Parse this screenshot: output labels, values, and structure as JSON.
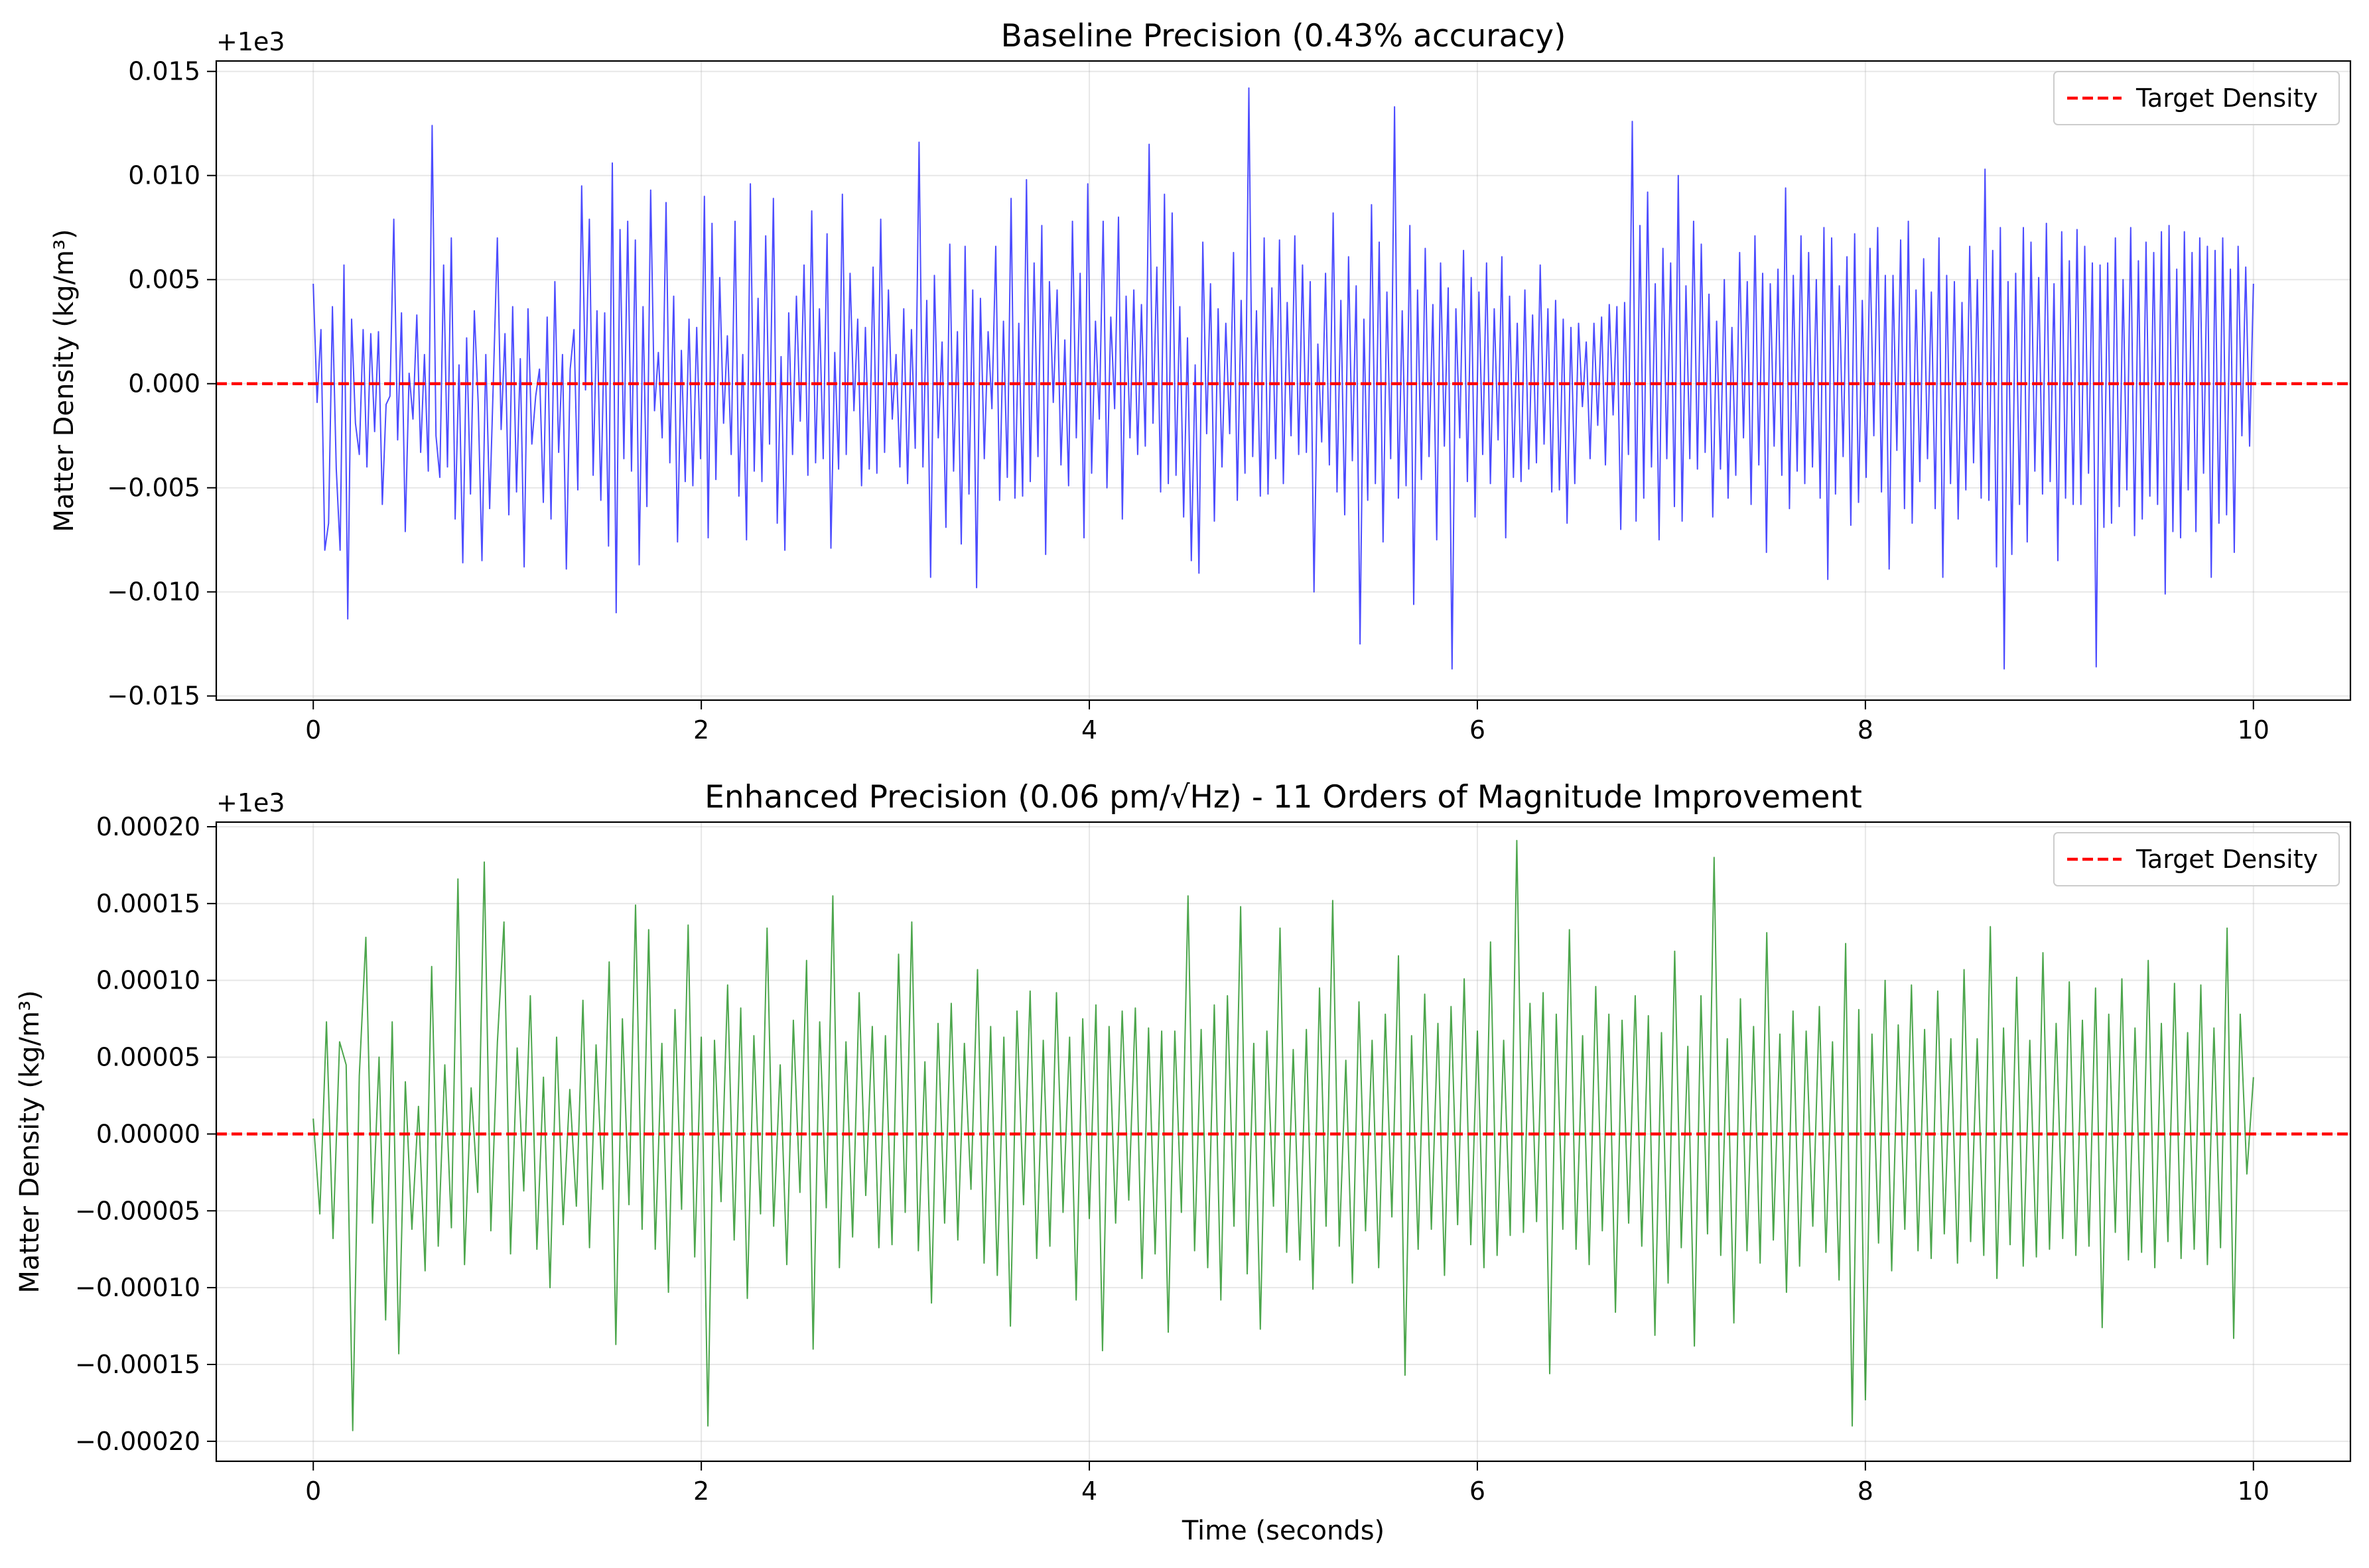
{
  "chart_data": [
    {
      "type": "line",
      "title": "Baseline Precision (0.43% accuracy)",
      "xlabel": "",
      "ylabel": "Matter Density (kg/m³)",
      "offset_label": "+1e3",
      "y_offset": 1000,
      "xlim": [
        -0.5,
        10.5
      ],
      "ylim": [
        -0.0152,
        0.0155
      ],
      "xticks": [
        0,
        2,
        4,
        6,
        8,
        10
      ],
      "xtick_labels": [
        "0",
        "2",
        "4",
        "6",
        "8",
        "10"
      ],
      "yticks": [
        -0.015,
        -0.01,
        -0.005,
        0.0,
        0.005,
        0.01,
        0.015
      ],
      "ytick_labels": [
        "−0.015",
        "−0.010",
        "−0.005",
        "0.000",
        "0.005",
        "0.010",
        "0.015"
      ],
      "grid": true,
      "legend": {
        "placement": "upper right",
        "entries": [
          {
            "label": "Target Density",
            "color": "#ff0000",
            "style": "dashed"
          }
        ]
      },
      "reference_line": {
        "y": 0.0,
        "name": "Target Density",
        "color": "#ff0000"
      },
      "series": [
        {
          "color": "#0000ff",
          "x_start": 0,
          "x_end": 10,
          "values": [
            0.0048,
            -0.0009,
            0.0026,
            -0.008,
            -0.0067,
            0.0037,
            -0.0041,
            -0.008,
            0.0057,
            -0.0113,
            0.0031,
            -0.0019,
            -0.0034,
            0.0026,
            -0.004,
            0.0024,
            -0.0023,
            0.0025,
            -0.0058,
            -0.001,
            -0.0006,
            0.0079,
            -0.0027,
            0.0034,
            -0.0071,
            0.0005,
            -0.0017,
            0.0033,
            -0.0033,
            0.0014,
            -0.0042,
            0.0124,
            -0.0025,
            -0.0045,
            0.0057,
            -0.004,
            0.007,
            -0.0065,
            0.0009,
            -0.0086,
            0.0022,
            -0.0053,
            0.0035,
            -0.0009,
            -0.0085,
            0.0014,
            -0.006,
            0.0004,
            0.007,
            -0.0022,
            0.0024,
            -0.0063,
            0.0037,
            -0.0052,
            0.0012,
            -0.0088,
            0.0036,
            -0.0029,
            -0.0006,
            0.0007,
            -0.0057,
            0.0032,
            -0.0065,
            0.0049,
            -0.0033,
            0.0014,
            -0.0089,
            0.0007,
            0.0026,
            -0.0051,
            0.0095,
            -0.0003,
            0.0079,
            -0.0044,
            0.0035,
            -0.0056,
            0.0034,
            -0.0078,
            0.0106,
            -0.011,
            0.0074,
            -0.0036,
            0.0078,
            -0.0042,
            0.0069,
            -0.0087,
            0.0037,
            -0.0059,
            0.0093,
            -0.0013,
            0.0015,
            -0.0026,
            0.0087,
            -0.0038,
            0.0042,
            -0.0076,
            0.0016,
            -0.0047,
            0.0031,
            -0.0049,
            0.0027,
            -0.0036,
            0.009,
            -0.0074,
            0.0077,
            -0.0046,
            0.0051,
            -0.0019,
            0.0023,
            -0.0034,
            0.0078,
            -0.0054,
            0.0014,
            -0.0075,
            0.0096,
            -0.0042,
            0.0041,
            -0.0047,
            0.0071,
            -0.0029,
            0.0089,
            -0.0067,
            0.0013,
            -0.008,
            0.0034,
            -0.0034,
            0.0042,
            -0.0018,
            0.0057,
            -0.0044,
            0.0083,
            -0.0038,
            0.0036,
            -0.0036,
            0.0072,
            -0.0079,
            0.0015,
            -0.0041,
            0.0091,
            -0.0034,
            0.0053,
            -0.0013,
            0.0031,
            -0.0049,
            0.0027,
            -0.0041,
            0.0056,
            -0.0043,
            0.0079,
            -0.0033,
            0.0045,
            -0.0017,
            0.0014,
            -0.004,
            0.0036,
            -0.0048,
            0.0026,
            -0.0031,
            0.0116,
            -0.004,
            0.004,
            -0.0093,
            0.0052,
            -0.0026,
            0.002,
            -0.0069,
            0.0067,
            -0.0042,
            0.0025,
            -0.0077,
            0.0066,
            -0.0053,
            0.0045,
            -0.0098,
            0.0041,
            -0.0036,
            0.0025,
            -0.0012,
            0.0066,
            -0.0056,
            0.003,
            -0.0045,
            0.0089,
            -0.0055,
            0.0029,
            -0.0054,
            0.0098,
            -0.0047,
            0.0058,
            -0.0035,
            0.0076,
            -0.0082,
            0.0049,
            -0.0009,
            0.0045,
            -0.0039,
            0.0021,
            -0.0049,
            0.0078,
            -0.0026,
            0.0053,
            -0.0074,
            0.0096,
            -0.0043,
            0.003,
            -0.0017,
            0.0078,
            -0.005,
            0.0032,
            -0.0012,
            0.008,
            -0.0065,
            0.0042,
            -0.0026,
            0.0045,
            -0.0034,
            0.0038,
            -0.003,
            0.0115,
            -0.0019,
            0.0056,
            -0.0052,
            0.0091,
            -0.0048,
            0.0082,
            -0.0044,
            0.0037,
            -0.0064,
            0.0022,
            -0.0085,
            0.0009,
            -0.0091,
            0.0068,
            -0.0024,
            0.0048,
            -0.0066,
            0.0036,
            -0.004,
            0.0029,
            -0.0024,
            0.0063,
            -0.0056,
            0.004,
            -0.0043,
            0.0142,
            -0.0035,
            0.0035,
            -0.0054,
            0.007,
            -0.0053,
            0.0046,
            -0.0036,
            0.0069,
            -0.0048,
            0.0039,
            -0.0025,
            0.0071,
            -0.0034,
            0.0057,
            -0.0033,
            0.0049,
            -0.01,
            0.0019,
            -0.0028,
            0.0053,
            -0.0039,
            0.0082,
            -0.0052,
            0.004,
            -0.0063,
            0.0061,
            -0.0037,
            0.0047,
            -0.0125,
            0.0031,
            -0.0056,
            0.0086,
            -0.0048,
            0.0068,
            -0.0076,
            0.0044,
            -0.0036,
            0.0133,
            -0.0055,
            0.0035,
            -0.0049,
            0.0076,
            -0.0106,
            0.0045,
            -0.0046,
            0.0065,
            -0.0035,
            0.0038,
            -0.0075,
            0.0058,
            -0.003,
            0.0046,
            -0.0137,
            0.0036,
            -0.0026,
            0.0064,
            -0.0047,
            0.0051,
            -0.0064,
            0.0044,
            -0.0034,
            0.0058,
            -0.0048,
            0.0036,
            -0.0027,
            0.0061,
            -0.0074,
            0.0042,
            -0.0045,
            0.0029,
            -0.0047,
            0.0045,
            -0.0041,
            0.0033,
            -0.0038,
            0.0057,
            -0.0029,
            0.0036,
            -0.0052,
            0.004,
            -0.0051,
            0.0031,
            -0.0067,
            0.0027,
            -0.0048,
            0.0029,
            -0.0011,
            0.002,
            -0.0036,
            0.0029,
            -0.002,
            0.0032,
            -0.0039,
            0.0038,
            -0.0015,
            0.0037,
            -0.007,
            0.0039,
            -0.0034,
            0.0126,
            -0.0066,
            0.0076,
            -0.0055,
            0.0092,
            -0.004,
            0.0048,
            -0.0075,
            0.0065,
            -0.0036,
            0.0058,
            -0.0059,
            0.01,
            -0.0066,
            0.0047,
            -0.0036,
            0.0078,
            -0.0041,
            0.0067,
            -0.0033,
            0.0043,
            -0.0064,
            0.003,
            -0.0041,
            0.005,
            -0.0055,
            0.0027,
            -0.0044,
            0.0063,
            -0.0026,
            0.0049,
            -0.0058,
            0.0071,
            -0.0039,
            0.0053,
            -0.0081,
            0.0048,
            -0.003,
            0.0055,
            -0.0044,
            0.0094,
            -0.006,
            0.0052,
            -0.0042,
            0.0071,
            -0.0048,
            0.0063,
            -0.004,
            0.005,
            -0.0055,
            0.0075,
            -0.0094,
            0.007,
            -0.0053,
            0.0047,
            -0.0035,
            0.0061,
            -0.0068,
            0.0072,
            -0.0057,
            0.004,
            -0.0045,
            0.0065,
            -0.0025,
            0.0075,
            -0.0052,
            0.0052,
            -0.0089,
            0.0052,
            -0.0032,
            0.0069,
            -0.006,
            0.0078,
            -0.0067,
            0.0045,
            -0.0047,
            0.006,
            -0.0036,
            0.0044,
            -0.006,
            0.007,
            -0.0093,
            0.0052,
            -0.0048,
            0.0049,
            -0.0065,
            0.0039,
            -0.0051,
            0.0066,
            -0.0038,
            0.005,
            -0.0055,
            0.0103,
            -0.0056,
            0.0064,
            -0.0088,
            0.0075,
            -0.0137,
            0.0049,
            -0.0082,
            0.0053,
            -0.0058,
            0.0075,
            -0.0076,
            0.0068,
            -0.0042,
            0.0051,
            -0.0053,
            0.0077,
            -0.0047,
            0.0048,
            -0.0085,
            0.0073,
            -0.0055,
            0.0059,
            -0.0058,
            0.0074,
            -0.0058,
            0.0066,
            -0.0043,
            0.0058,
            -0.0136,
            0.0057,
            -0.0069,
            0.0058,
            -0.0067,
            0.007,
            -0.0059,
            0.005,
            -0.0051,
            0.0075,
            -0.0073,
            0.0059,
            -0.0065,
            0.0068,
            -0.0054,
            0.0063,
            -0.0058,
            0.0073,
            -0.0101,
            0.0076,
            -0.0071,
            0.0055,
            -0.0074,
            0.0073,
            -0.0051,
            0.0063,
            -0.0071,
            0.007,
            -0.0043,
            0.0066,
            -0.0093,
            0.0064,
            -0.0067,
            0.007,
            -0.0063,
            0.0055,
            -0.0081,
            0.0066,
            -0.0025,
            0.0056,
            -0.003,
            0.0048
          ]
        }
      ]
    },
    {
      "type": "line",
      "title": "Enhanced Precision (0.06 pm/√Hz) - 11 Orders of Magnitude Improvement",
      "xlabel": "Time (seconds)",
      "ylabel": "Matter Density (kg/m³)",
      "offset_label": "+1e3",
      "y_offset": 1000,
      "xlim": [
        -0.5,
        10.5
      ],
      "ylim": [
        -0.000213,
        0.000203
      ],
      "xticks": [
        0,
        2,
        4,
        6,
        8,
        10
      ],
      "xtick_labels": [
        "0",
        "2",
        "4",
        "6",
        "8",
        "10"
      ],
      "yticks": [
        -0.0002,
        -0.00015,
        -0.0001,
        -5e-05,
        0.0,
        5e-05,
        0.0001,
        0.00015,
        0.0002
      ],
      "ytick_labels": [
        "−0.00020",
        "−0.00015",
        "−0.00010",
        "−0.00005",
        "0.00000",
        "0.00005",
        "0.00010",
        "0.00015",
        "0.00020"
      ],
      "grid": true,
      "legend": {
        "placement": "upper right",
        "entries": [
          {
            "label": "Target Density",
            "color": "#ff0000",
            "style": "dashed"
          }
        ]
      },
      "reference_line": {
        "y": 0.0,
        "name": "Target Density",
        "color": "#ff0000"
      },
      "series": [
        {
          "color": "#008000",
          "x_start": 0,
          "x_end": 10,
          "values": [
            1e-05,
            -5.2e-05,
            7.3e-05,
            -6.8e-05,
            6e-05,
            4.5e-05,
            -0.000193,
            3.8e-05,
            0.000128,
            -5.8e-05,
            5e-05,
            -0.000121,
            7.3e-05,
            -0.000143,
            3.4e-05,
            -6.2e-05,
            1.8e-05,
            -8.9e-05,
            0.000109,
            -7.3e-05,
            4.5e-05,
            -6.1e-05,
            0.000166,
            -8.5e-05,
            3e-05,
            -3.8e-05,
            0.000177,
            -6.3e-05,
            6e-05,
            0.000138,
            -7.8e-05,
            5.6e-05,
            -3.7e-05,
            9e-05,
            -7.5e-05,
            3.7e-05,
            -0.0001,
            6.3e-05,
            -5.9e-05,
            2.9e-05,
            -4.7e-05,
            8.7e-05,
            -7.4e-05,
            5.8e-05,
            -3.6e-05,
            0.000112,
            -0.000137,
            7.5e-05,
            -4.6e-05,
            0.000149,
            -6.2e-05,
            0.000133,
            -7.5e-05,
            5.9e-05,
            -0.000103,
            8.1e-05,
            -4.9e-05,
            0.000136,
            -8e-05,
            6.3e-05,
            -0.00019,
            6.1e-05,
            -4.4e-05,
            9.7e-05,
            -6.9e-05,
            8.2e-05,
            -0.000107,
            6.4e-05,
            -5.2e-05,
            0.000134,
            -6e-05,
            4.5e-05,
            -8.5e-05,
            7.4e-05,
            -3.8e-05,
            0.000113,
            -0.00014,
            7.3e-05,
            -4.8e-05,
            0.000155,
            -8.7e-05,
            6e-05,
            -6.7e-05,
            9.2e-05,
            -4e-05,
            7e-05,
            -7.4e-05,
            6.4e-05,
            -7.2e-05,
            0.000117,
            -5.1e-05,
            0.000138,
            -7.6e-05,
            4.7e-05,
            -0.00011,
            7.2e-05,
            -5.8e-05,
            8.5e-05,
            -6.9e-05,
            5.9e-05,
            -3.6e-05,
            0.000107,
            -8.4e-05,
            7e-05,
            -9.2e-05,
            6.3e-05,
            -0.000125,
            8e-05,
            -4.6e-05,
            9.3e-05,
            -8.1e-05,
            6.1e-05,
            -7.3e-05,
            9.2e-05,
            -5.1e-05,
            6.3e-05,
            -0.000108,
            7.5e-05,
            -5.5e-05,
            8.4e-05,
            -0.000141,
            7e-05,
            -5.8e-05,
            8e-05,
            -4.3e-05,
            8.2e-05,
            -9.4e-05,
            6.9e-05,
            -7.8e-05,
            6.7e-05,
            -0.000129,
            6.7e-05,
            -5.1e-05,
            0.000155,
            -7.6e-05,
            6.8e-05,
            -8.7e-05,
            8.4e-05,
            -0.000108,
            9e-05,
            -6e-05,
            0.000148,
            -9.1e-05,
            5.9e-05,
            -0.000127,
            6.7e-05,
            -4.7e-05,
            0.000134,
            -7.7e-05,
            5.5e-05,
            -8.2e-05,
            6.8e-05,
            -0.000101,
            9.5e-05,
            -6e-05,
            0.000152,
            -7.3e-05,
            4.8e-05,
            -9.7e-05,
            8.6e-05,
            -6.3e-05,
            6.1e-05,
            -8.7e-05,
            7.8e-05,
            -5.4e-05,
            0.000116,
            -0.000157,
            6.4e-05,
            -7.5e-05,
            9.1e-05,
            -6.2e-05,
            7.2e-05,
            -9.2e-05,
            8.3e-05,
            -5.9e-05,
            0.000101,
            -7.2e-05,
            6.7e-05,
            -8.7e-05,
            0.000125,
            -7.9e-05,
            6.1e-05,
            -6.6e-05,
            0.000191,
            -6.4e-05,
            8.5e-05,
            -5.7e-05,
            9.2e-05,
            -0.000156,
            7.8e-05,
            -6.2e-05,
            0.000133,
            -7.5e-05,
            6.4e-05,
            -8.5e-05,
            9.6e-05,
            -6.3e-05,
            7.8e-05,
            -0.000116,
            7.4e-05,
            -5.8e-05,
            9e-05,
            -7.3e-05,
            7.7e-05,
            -0.000131,
            6.6e-05,
            -9.7e-05,
            0.000119,
            -7.4e-05,
            5.7e-05,
            -0.000138,
            9e-05,
            -6.5e-05,
            0.00018,
            -7.9e-05,
            6.2e-05,
            -0.000123,
            8.8e-05,
            -7.6e-05,
            7e-05,
            -8.4e-05,
            0.000131,
            -6.9e-05,
            6.5e-05,
            -0.000103,
            8e-05,
            -8.6e-05,
            6.7e-05,
            -6e-05,
            8.3e-05,
            -7.7e-05,
            6e-05,
            -9.5e-05,
            0.000124,
            -0.00019,
            8.1e-05,
            -0.000173,
            6.5e-05,
            -7.1e-05,
            0.0001,
            -8.9e-05,
            7.1e-05,
            -6.2e-05,
            9.7e-05,
            -7.6e-05,
            6.8e-05,
            -8.1e-05,
            9.3e-05,
            -6.5e-05,
            6.2e-05,
            -8.4e-05,
            0.000107,
            -7e-05,
            6.2e-05,
            -7.9e-05,
            0.000135,
            -9.4e-05,
            6.9e-05,
            -7.2e-05,
            0.000102,
            -8.6e-05,
            6.1e-05,
            -8e-05,
            0.000118,
            -7.5e-05,
            7.2e-05,
            -6.8e-05,
            9.9e-05,
            -7.9e-05,
            7.4e-05,
            -7.3e-05,
            9.5e-05,
            -0.000126,
            7.8e-05,
            -6.4e-05,
            0.000101,
            -8.2e-05,
            6.9e-05,
            -7.7e-05,
            0.000113,
            -8.7e-05,
            7.2e-05,
            -7e-05,
            9.8e-05,
            -8.1e-05,
            6.6e-05,
            -7.5e-05,
            9.7e-05,
            -8.5e-05,
            6.9e-05,
            -7.4e-05,
            0.000134,
            -0.000133,
            7.8e-05,
            -2.6e-05,
            3.7e-05
          ]
        }
      ]
    }
  ]
}
